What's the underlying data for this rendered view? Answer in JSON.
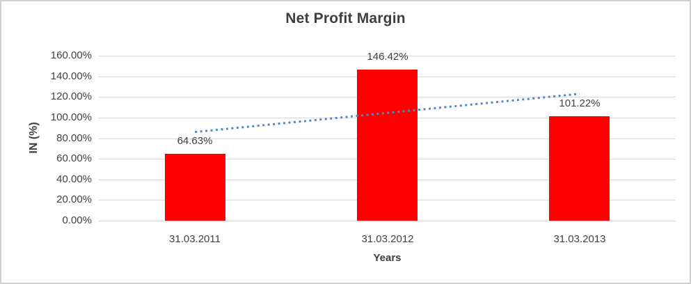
{
  "chart": {
    "colors": {
      "bar": "#ff0000",
      "trendline": "#4e8ac8",
      "gridline": "#d9d9d9",
      "text": "#404040",
      "border": "#cfcfcf",
      "background": "#ffffff"
    }
  },
  "chart_data": {
    "type": "bar",
    "title": "Net Profit Margin",
    "xlabel": "Years",
    "ylabel": "IN (%)",
    "categories": [
      "31.03.2011",
      "31.03.2012",
      "31.03.2013"
    ],
    "values": [
      64.63,
      146.42,
      101.22
    ],
    "data_labels": [
      "64.63%",
      "146.42%",
      "101.22%"
    ],
    "y_ticks": [
      "0.00%",
      "20.00%",
      "40.00%",
      "60.00%",
      "80.00%",
      "100.00%",
      "120.00%",
      "140.00%",
      "160.00%"
    ],
    "ylim": [
      0,
      160
    ],
    "grid": true,
    "legend": false,
    "trendline": {
      "type": "linear",
      "style": "dotted",
      "start_value": 86,
      "end_value": 123
    }
  }
}
